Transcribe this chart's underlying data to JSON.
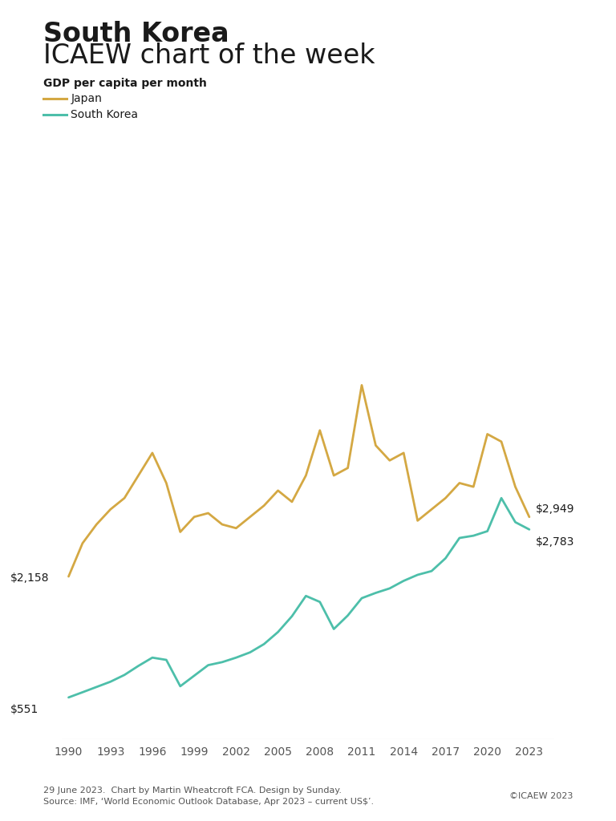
{
  "title_bold": "South Korea",
  "title_light": "ICAEW chart of the week",
  "subtitle": "GDP per capita per month",
  "japan_label": "Japan",
  "korea_label": "South Korea",
  "japan_color": "#D4A843",
  "korea_color": "#4DBFAA",
  "background_color": "#FFFFFF",
  "text_color": "#1a1a1a",
  "footnote_line1": "29 June 2023.  Chart by Martin Wheatcroft FCA. Design by Sunday.",
  "footnote_line2": "Source: IMF, ‘World Economic Outlook Database, Apr 2023 – current US$’.",
  "footnote_right": "©ICAEW 2023",
  "years": [
    1990,
    1991,
    1992,
    1993,
    1994,
    1995,
    1996,
    1997,
    1998,
    1999,
    2000,
    2001,
    2002,
    2003,
    2004,
    2005,
    2006,
    2007,
    2008,
    2009,
    2010,
    2011,
    2012,
    2013,
    2014,
    2015,
    2016,
    2017,
    2018,
    2019,
    2020,
    2021,
    2022,
    2023
  ],
  "japan_gdp_monthly": [
    2158,
    2600,
    2850,
    3050,
    3200,
    3500,
    3800,
    3400,
    2750,
    2950,
    3000,
    2850,
    2800,
    2950,
    3100,
    3300,
    3150,
    3500,
    4100,
    3500,
    3600,
    4700,
    3900,
    3700,
    3800,
    2900,
    3050,
    3200,
    3400,
    3350,
    4050,
    3950,
    3350,
    2949
  ],
  "korea_gdp_monthly": [
    551,
    620,
    690,
    760,
    850,
    970,
    1080,
    1050,
    700,
    840,
    980,
    1020,
    1080,
    1150,
    1260,
    1420,
    1630,
    1900,
    1820,
    1460,
    1640,
    1870,
    1940,
    2000,
    2100,
    2180,
    2230,
    2400,
    2670,
    2700,
    2760,
    3200,
    2880,
    2783
  ],
  "japan_start_label": "$2,158",
  "japan_end_label": "$2,949",
  "korea_start_label": "$551",
  "korea_end_label": "$2,783",
  "xtick_years": [
    1990,
    1993,
    1996,
    1999,
    2002,
    2005,
    2008,
    2011,
    2014,
    2017,
    2020,
    2023
  ],
  "ylim_min": 0,
  "ylim_max": 6000
}
